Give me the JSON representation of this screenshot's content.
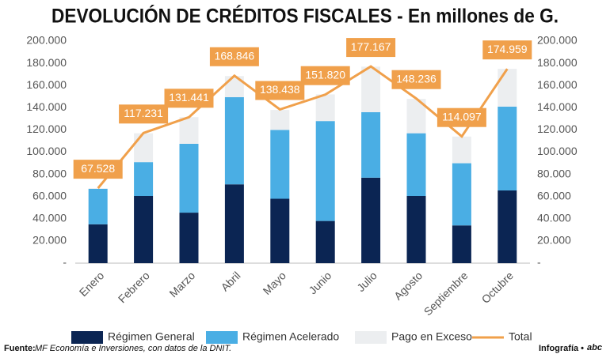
{
  "chart_data": {
    "type": "bar",
    "stacked": true,
    "title": "DEVOLUCIÓN DE CRÉDITOS FISCALES - En millones de G.",
    "categories": [
      "Enero",
      "Febrero",
      "Marzo",
      "Abril",
      "Mayo",
      "Junio",
      "Julio",
      "Agosto",
      "Septiembre",
      "Octubre"
    ],
    "series": [
      {
        "name": "Régimen General",
        "color": "#0b2553",
        "values": [
          35000,
          60500,
          45500,
          71000,
          58000,
          38000,
          77000,
          60500,
          34000,
          65500
        ]
      },
      {
        "name": "Régimen Acelerado",
        "color": "#4aaee4",
        "values": [
          32000,
          30500,
          62000,
          78500,
          62000,
          90000,
          59000,
          56500,
          56000,
          75500
        ]
      },
      {
        "name": "Pago en Exceso",
        "color": "#eceef0",
        "values": [
          500,
          26000,
          24000,
          19000,
          18000,
          24000,
          41000,
          31000,
          24000,
          34000
        ]
      },
      {
        "name": "Total",
        "type": "line",
        "color": "#f0a04b",
        "values": [
          67528,
          117231,
          131441,
          168846,
          138438,
          151820,
          177167,
          148236,
          114097,
          174959
        ],
        "value_labels": [
          "67.528",
          "117.231",
          "131.441",
          "168.846",
          "138.438",
          "151.820",
          "177.167",
          "148.236",
          "114.097",
          "174.959"
        ]
      }
    ],
    "ylim": [
      0,
      200000
    ],
    "yticks": [
      {
        "value": 0,
        "label": "-"
      },
      {
        "value": 20000,
        "label": "20.000"
      },
      {
        "value": 40000,
        "label": "40.000"
      },
      {
        "value": 60000,
        "label": "60.000"
      },
      {
        "value": 80000,
        "label": "80.000"
      },
      {
        "value": 100000,
        "label": "100.000"
      },
      {
        "value": 120000,
        "label": "120.000"
      },
      {
        "value": 140000,
        "label": "140.000"
      },
      {
        "value": 160000,
        "label": "160.000"
      },
      {
        "value": 180000,
        "label": "180.000"
      },
      {
        "value": 200000,
        "label": "200.000"
      }
    ],
    "y2lim": [
      0,
      200000
    ],
    "y2ticks": [
      {
        "value": 0,
        "label": "-"
      },
      {
        "value": 20000,
        "label": "20.000"
      },
      {
        "value": 40000,
        "label": "40.000"
      },
      {
        "value": 60000,
        "label": "60.000"
      },
      {
        "value": 80000,
        "label": "80.000"
      },
      {
        "value": 100000,
        "label": "100.000"
      },
      {
        "value": 120000,
        "label": "120.000"
      },
      {
        "value": 140000,
        "label": "140.000"
      },
      {
        "value": 160000,
        "label": "160.000"
      },
      {
        "value": 180000,
        "label": "180.000"
      },
      {
        "value": 200000,
        "label": "200.000"
      }
    ],
    "source_label": "Fuente:",
    "source": "MF Economía e Inversiones, con datos de la DNIT.",
    "credit": "Infografía •",
    "logo": "abc"
  }
}
